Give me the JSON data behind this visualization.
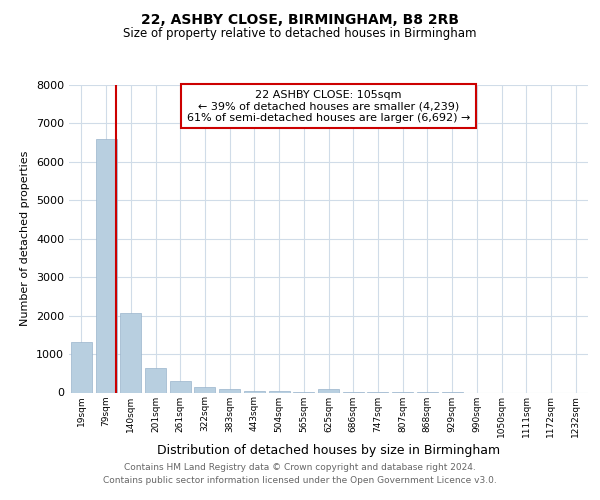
{
  "title1": "22, ASHBY CLOSE, BIRMINGHAM, B8 2RB",
  "title2": "Size of property relative to detached houses in Birmingham",
  "xlabel": "Distribution of detached houses by size in Birmingham",
  "ylabel": "Number of detached properties",
  "footer1": "Contains HM Land Registry data © Crown copyright and database right 2024.",
  "footer2": "Contains public sector information licensed under the Open Government Licence v3.0.",
  "annotation_title": "22 ASHBY CLOSE: 105sqm",
  "annotation_line1": "← 39% of detached houses are smaller (4,239)",
  "annotation_line2": "61% of semi-detached houses are larger (6,692) →",
  "bar_color": "#b8cfe0",
  "bar_edge_color": "#9ab4cc",
  "vline_color": "#cc0000",
  "bg_color": "#ffffff",
  "grid_color": "#d0dce8",
  "categories": [
    "19sqm",
    "79sqm",
    "140sqm",
    "201sqm",
    "261sqm",
    "322sqm",
    "383sqm",
    "443sqm",
    "504sqm",
    "565sqm",
    "625sqm",
    "686sqm",
    "747sqm",
    "807sqm",
    "868sqm",
    "929sqm",
    "990sqm",
    "1050sqm",
    "1111sqm",
    "1172sqm",
    "1232sqm"
  ],
  "values": [
    1320,
    6600,
    2080,
    650,
    300,
    150,
    100,
    50,
    30,
    15,
    100,
    5,
    2,
    1,
    1,
    1,
    0,
    0,
    0,
    0,
    0
  ],
  "ylim": [
    0,
    8000
  ],
  "vline_x": 1.42
}
